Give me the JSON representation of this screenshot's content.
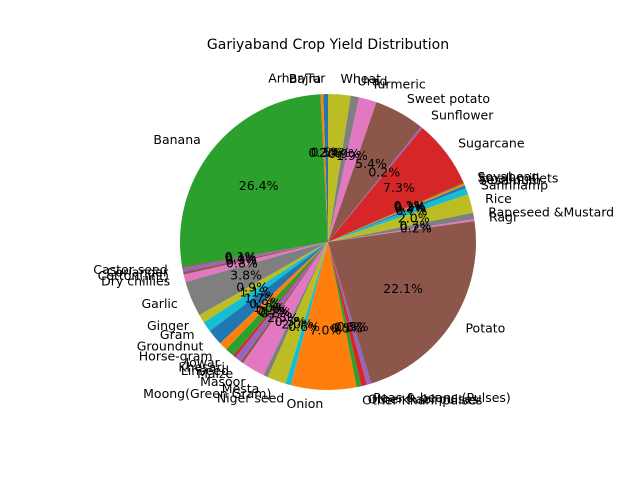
{
  "chart_data": {
    "type": "pie",
    "title": "Gariyaband Crop Yield Distribution",
    "start_angle_deg": 90,
    "direction": "counterclockwise",
    "slices": [
      {
        "label": "Arhar/Tur",
        "value": 0.5,
        "pct_label": "0.5%",
        "color": "#1f77b4"
      },
      {
        "label": "Bajra",
        "value": 0.3,
        "pct_label": "0.3%",
        "color": "#ff7f0e"
      },
      {
        "label": "Banana",
        "value": 26.4,
        "pct_label": "26.4%",
        "color": "#2ca02c"
      },
      {
        "label": "Castor seed",
        "value": 0.1,
        "pct_label": "0.1%",
        "color": "#d62728"
      },
      {
        "label": "Coriander",
        "value": 0.4,
        "pct_label": "0.4%",
        "color": "#9467bd"
      },
      {
        "label": "Cotton(lint)",
        "value": 0.3,
        "pct_label": "0.3%",
        "color": "#8c564b"
      },
      {
        "label": "Dry chillies",
        "value": 0.8,
        "pct_label": "0.8%",
        "color": "#e377c2"
      },
      {
        "label": "Garlic",
        "value": 3.8,
        "pct_label": "3.8%",
        "color": "#7f7f7f"
      },
      {
        "label": "Ginger",
        "value": 0.9,
        "pct_label": "0.9%",
        "color": "#bcbd22"
      },
      {
        "label": "Gram",
        "value": 1.1,
        "pct_label": "1.1%",
        "color": "#17becf"
      },
      {
        "label": "Groundnut",
        "value": 1.7,
        "pct_label": "1.7%",
        "color": "#1f77b4"
      },
      {
        "label": "Horse-gram",
        "value": 0.9,
        "pct_label": "0.9%",
        "color": "#ff7f0e"
      },
      {
        "label": "Jowar",
        "value": 1.0,
        "pct_label": "1.0%",
        "color": "#2ca02c"
      },
      {
        "label": "Khesari",
        "value": 0.3,
        "pct_label": "0.3%",
        "color": "#d62728"
      },
      {
        "label": "Linseed",
        "value": 0.7,
        "pct_label": "0.7%",
        "color": "#9467bd"
      },
      {
        "label": "Maize",
        "value": 0.3,
        "pct_label": "0.3%",
        "color": "#8c564b"
      },
      {
        "label": "Masoor",
        "value": 2.5,
        "pct_label": "2.5%",
        "color": "#e377c2"
      },
      {
        "label": "Mesta",
        "value": 0.5,
        "pct_label": "0.5%",
        "color": "#7f7f7f"
      },
      {
        "label": "Moong(Green Gram)",
        "value": 2.0,
        "pct_label": "2.0%",
        "color": "#bcbd22"
      },
      {
        "label": "Niger seed",
        "value": 0.6,
        "pct_label": "0.6%",
        "color": "#17becf"
      },
      {
        "label": "Onion",
        "value": 7.0,
        "pct_label": "7.0%",
        "color": "#ff7f0e"
      },
      {
        "label": "Other Kharif pulses",
        "value": 0.5,
        "pct_label": "0.5%",
        "color": "#2ca02c"
      },
      {
        "label": "Other Rabi pulses",
        "value": 0.6,
        "pct_label": "0.6%",
        "color": "#d62728"
      },
      {
        "label": "Peas & beans (Pulses)",
        "value": 0.5,
        "pct_label": "0.5%",
        "color": "#9467bd"
      },
      {
        "label": "Potato",
        "value": 22.1,
        "pct_label": "22.1%",
        "color": "#8c564b"
      },
      {
        "label": "Ragi",
        "value": 0.2,
        "pct_label": "0.2%",
        "color": "#e377c2"
      },
      {
        "label": "Rapeseed &Mustard",
        "value": 0.7,
        "pct_label": "0.7%",
        "color": "#7f7f7f"
      },
      {
        "label": "Rice",
        "value": 2.0,
        "pct_label": "2.0%",
        "color": "#bcbd22"
      },
      {
        "label": "Sannhamp",
        "value": 0.7,
        "pct_label": "0.7%",
        "color": "#17becf"
      },
      {
        "label": "Sesamum",
        "value": 0.3,
        "pct_label": "0.3%",
        "color": "#1f77b4"
      },
      {
        "label": "Small millets",
        "value": 0.2,
        "pct_label": "0.2%",
        "color": "#ff7f0e"
      },
      {
        "label": "Soyabean",
        "value": 0.1,
        "pct_label": "0.1%",
        "color": "#2ca02c"
      },
      {
        "label": "Sugarcane",
        "value": 7.3,
        "pct_label": "7.3%",
        "color": "#d62728"
      },
      {
        "label": "Sunflower",
        "value": 0.2,
        "pct_label": "0.2%",
        "color": "#9467bd"
      },
      {
        "label": "Sweet potato",
        "value": 5.4,
        "pct_label": "5.4%",
        "color": "#8c564b"
      },
      {
        "label": "Turmeric",
        "value": 1.9,
        "pct_label": "1.9%",
        "color": "#e377c2"
      },
      {
        "label": "Urad",
        "value": 0.9,
        "pct_label": "0.9%",
        "color": "#7f7f7f"
      },
      {
        "label": "Wheat",
        "value": 2.4,
        "pct_label": "2.4%",
        "color": "#bcbd22"
      }
    ]
  }
}
